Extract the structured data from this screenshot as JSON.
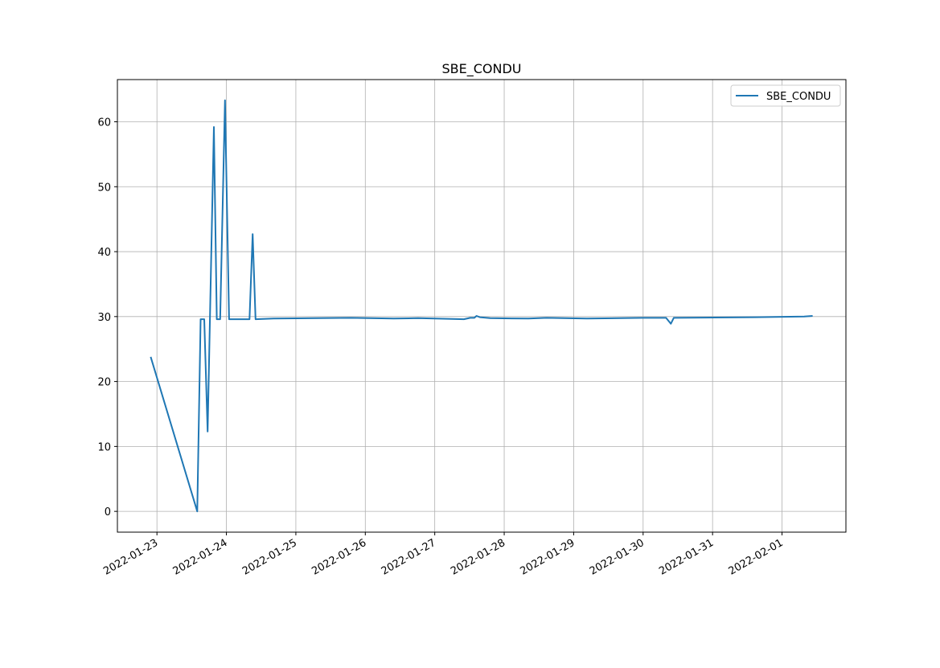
{
  "chart_data": {
    "type": "line",
    "title": "SBE_CONDU",
    "xlabel": "",
    "ylabel": "",
    "xlim": [
      "2022-01-22T10:20",
      "2022-02-01T22:05"
    ],
    "ylim": [
      -3.2,
      66.5
    ],
    "grid": true,
    "legend_placement": "top-right",
    "x_ticks": [
      "2022-01-23",
      "2022-01-24",
      "2022-01-25",
      "2022-01-26",
      "2022-01-27",
      "2022-01-28",
      "2022-01-29",
      "2022-01-30",
      "2022-01-31",
      "2022-02-01"
    ],
    "y_ticks": [
      0,
      10,
      20,
      30,
      40,
      50,
      60
    ],
    "series": [
      {
        "name": "SBE_CONDU",
        "color": "#1f77b4",
        "x": [
          "2022-01-22T21:50",
          "2022-01-23T13:55",
          "2022-01-23T15:05",
          "2022-01-23T16:20",
          "2022-01-23T17:30",
          "2022-01-23T19:40",
          "2022-01-23T20:40",
          "2022-01-23T21:50",
          "2022-01-23T23:30",
          "2022-01-24T00:55",
          "2022-01-24T08:00",
          "2022-01-24T09:05",
          "2022-01-24T10:05",
          "2022-01-24T16:20",
          "2022-01-25T19:00",
          "2022-01-26T09:50",
          "2022-01-26T18:15",
          "2022-01-27T10:05",
          "2022-01-27T12:15",
          "2022-01-27T13:40",
          "2022-01-27T14:25",
          "2022-01-27T15:35",
          "2022-01-27T19:10",
          "2022-01-28T08:25",
          "2022-01-28T14:40",
          "2022-01-29T04:35",
          "2022-01-30T00:00",
          "2022-01-30T07:55",
          "2022-01-30T09:35",
          "2022-01-30T10:35",
          "2022-01-31T14:50",
          "2022-02-01T07:40",
          "2022-02-01T10:35"
        ],
        "y": [
          23.8,
          0,
          29.6,
          29.6,
          12.3,
          59.2,
          29.6,
          29.6,
          63.3,
          29.6,
          29.6,
          42.7,
          29.6,
          29.7,
          29.8,
          29.7,
          29.75,
          29.6,
          29.8,
          29.8,
          30.1,
          29.9,
          29.75,
          29.7,
          29.8,
          29.7,
          29.8,
          29.8,
          28.9,
          29.8,
          29.9,
          30.0,
          30.1
        ]
      }
    ]
  }
}
